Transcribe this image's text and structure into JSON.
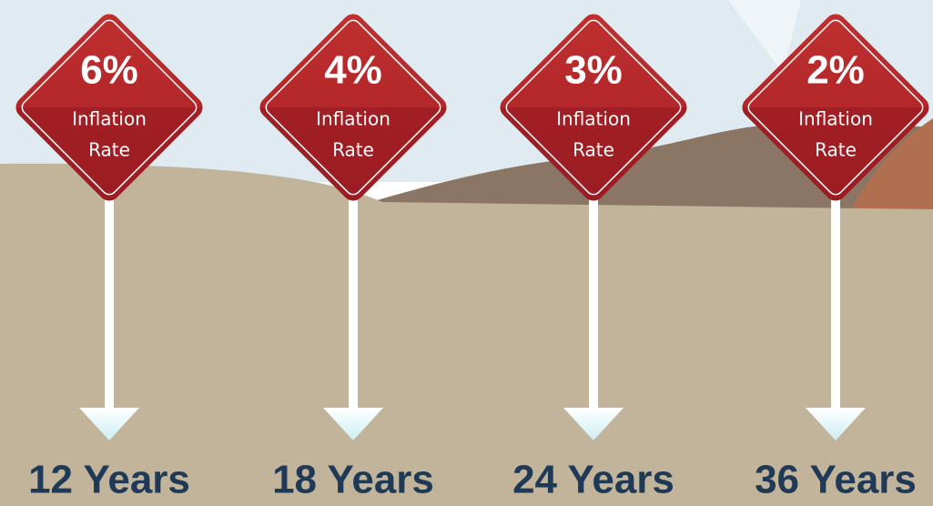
{
  "signs": [
    {
      "rate": "6%",
      "line1": "Inflation",
      "line2": "Rate",
      "years": "12 Years"
    },
    {
      "rate": "4%",
      "line1": "Inflation",
      "line2": "Rate",
      "years": "18 Years"
    },
    {
      "rate": "3%",
      "line1": "Inflation",
      "line2": "Rate",
      "years": "24 Years"
    },
    {
      "rate": "2%",
      "line1": "Inflation",
      "line2": "Rate",
      "years": "36 Years"
    }
  ]
}
